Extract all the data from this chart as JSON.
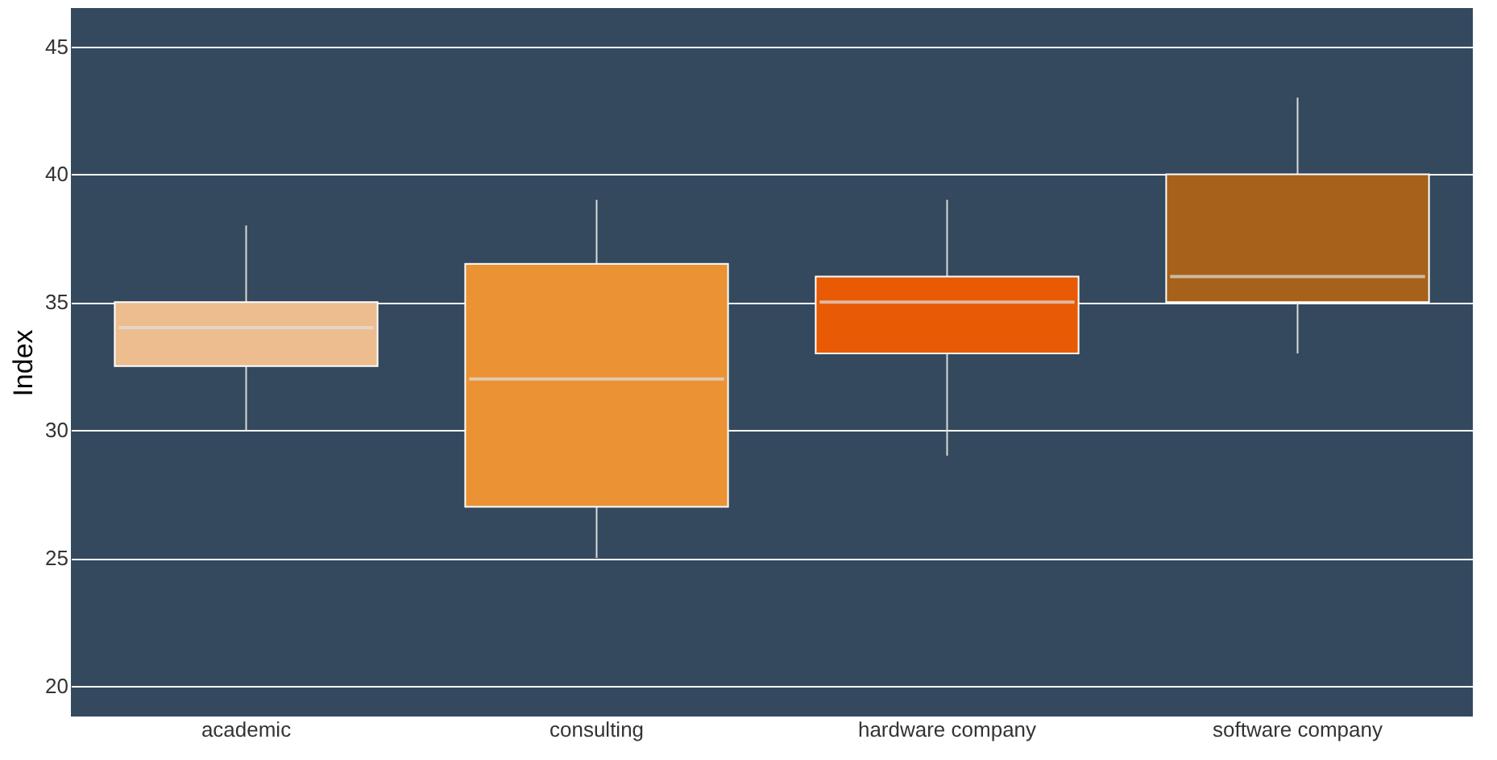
{
  "chart_data": {
    "type": "box",
    "ylabel": "Index",
    "categories": [
      "academic",
      "consulting",
      "hardware company",
      "software company"
    ],
    "boxes": [
      {
        "low": 30,
        "q1": 32.5,
        "median": 34,
        "q3": 35,
        "high": 38
      },
      {
        "low": 25,
        "q1": 27,
        "median": 32,
        "q3": 36.5,
        "high": 39
      },
      {
        "low": 29,
        "q1": 33,
        "median": 35,
        "q3": 36,
        "high": 39
      },
      {
        "low": 33,
        "q1": 35,
        "median": 36,
        "q3": 40,
        "high": 43
      }
    ],
    "colors": [
      "#edbd8f",
      "#eb9234",
      "#e85a04",
      "#a6621a"
    ],
    "ylim": [
      18.8,
      46.5
    ],
    "yticks": [
      20,
      25,
      30,
      35,
      40,
      45
    ],
    "grid": "y"
  }
}
